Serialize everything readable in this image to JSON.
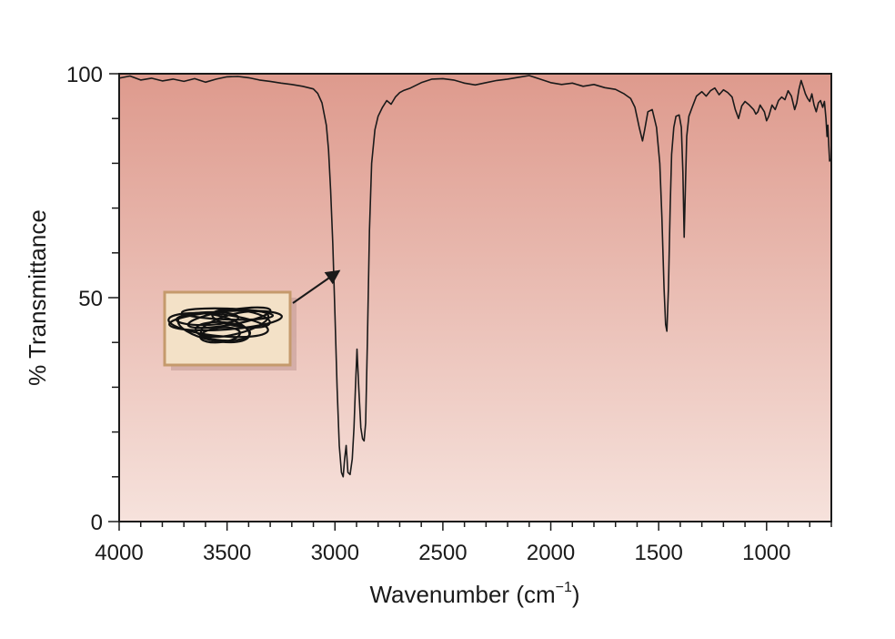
{
  "chart_data": {
    "type": "line",
    "title": "",
    "xlabel": "Wavenumber (cm",
    "xlabel_sup": "−1",
    "xlabel_close": ")",
    "ylabel": "% Transmittance",
    "xlim": [
      4000,
      700
    ],
    "ylim": [
      0,
      100
    ],
    "x_tick_labels": [
      "4000",
      "3500",
      "3000",
      "2500",
      "2000",
      "1500",
      "1000"
    ],
    "x_tick_values": [
      4000,
      3500,
      3000,
      2500,
      2000,
      1500,
      1000
    ],
    "y_tick_labels": [
      "0",
      "50",
      "100"
    ],
    "y_tick_values": [
      0,
      50,
      100
    ],
    "grid": false,
    "background_gradient": [
      "#de9a8d",
      "#f6e2dc"
    ],
    "line_color": "#1a1a1a",
    "series": [
      {
        "values": [
          [
            4000,
            99.0
          ],
          [
            3950,
            99.5
          ],
          [
            3900,
            98.6
          ],
          [
            3850,
            99.0
          ],
          [
            3800,
            98.4
          ],
          [
            3750,
            98.8
          ],
          [
            3700,
            98.3
          ],
          [
            3650,
            98.9
          ],
          [
            3600,
            98.1
          ],
          [
            3550,
            98.8
          ],
          [
            3500,
            99.3
          ],
          [
            3450,
            99.4
          ],
          [
            3400,
            99.1
          ],
          [
            3350,
            98.6
          ],
          [
            3300,
            98.3
          ],
          [
            3250,
            97.9
          ],
          [
            3200,
            97.6
          ],
          [
            3150,
            97.2
          ],
          [
            3100,
            96.6
          ],
          [
            3080,
            95.6
          ],
          [
            3060,
            93.5
          ],
          [
            3040,
            88.5
          ],
          [
            3030,
            83.0
          ],
          [
            3020,
            74.0
          ],
          [
            3010,
            62.0
          ],
          [
            3000,
            46.0
          ],
          [
            2990,
            30.0
          ],
          [
            2980,
            17.0
          ],
          [
            2970,
            11.0
          ],
          [
            2962,
            10.0
          ],
          [
            2955,
            14.0
          ],
          [
            2948,
            17.0
          ],
          [
            2940,
            11.0
          ],
          [
            2930,
            10.5
          ],
          [
            2920,
            14.0
          ],
          [
            2912,
            21.0
          ],
          [
            2905,
            30.0
          ],
          [
            2898,
            38.5
          ],
          [
            2890,
            30.0
          ],
          [
            2880,
            21.0
          ],
          [
            2872,
            18.5
          ],
          [
            2865,
            18.0
          ],
          [
            2858,
            22.0
          ],
          [
            2850,
            40.0
          ],
          [
            2840,
            65.0
          ],
          [
            2830,
            80.0
          ],
          [
            2815,
            87.5
          ],
          [
            2800,
            90.5
          ],
          [
            2780,
            92.5
          ],
          [
            2760,
            94.0
          ],
          [
            2740,
            93.2
          ],
          [
            2720,
            94.8
          ],
          [
            2700,
            95.8
          ],
          [
            2680,
            96.3
          ],
          [
            2650,
            96.8
          ],
          [
            2600,
            98.0
          ],
          [
            2550,
            98.8
          ],
          [
            2500,
            98.9
          ],
          [
            2450,
            98.6
          ],
          [
            2400,
            97.9
          ],
          [
            2350,
            97.5
          ],
          [
            2300,
            98.0
          ],
          [
            2250,
            98.5
          ],
          [
            2200,
            98.8
          ],
          [
            2150,
            99.2
          ],
          [
            2100,
            99.6
          ],
          [
            2050,
            98.8
          ],
          [
            2000,
            98.0
          ],
          [
            1950,
            97.6
          ],
          [
            1900,
            97.9
          ],
          [
            1850,
            97.2
          ],
          [
            1800,
            97.6
          ],
          [
            1750,
            96.9
          ],
          [
            1700,
            96.5
          ],
          [
            1660,
            95.5
          ],
          [
            1630,
            94.5
          ],
          [
            1610,
            92.5
          ],
          [
            1590,
            88.0
          ],
          [
            1575,
            85.0
          ],
          [
            1565,
            87.5
          ],
          [
            1550,
            91.5
          ],
          [
            1530,
            92.0
          ],
          [
            1510,
            88.0
          ],
          [
            1495,
            80.0
          ],
          [
            1485,
            68.0
          ],
          [
            1475,
            52.0
          ],
          [
            1468,
            44.0
          ],
          [
            1462,
            42.5
          ],
          [
            1455,
            52.0
          ],
          [
            1447,
            70.0
          ],
          [
            1440,
            82.0
          ],
          [
            1430,
            88.0
          ],
          [
            1420,
            90.5
          ],
          [
            1405,
            90.8
          ],
          [
            1395,
            88.0
          ],
          [
            1388,
            78.0
          ],
          [
            1382,
            63.5
          ],
          [
            1376,
            75.0
          ],
          [
            1370,
            86.0
          ],
          [
            1360,
            90.5
          ],
          [
            1345,
            92.5
          ],
          [
            1325,
            95.0
          ],
          [
            1300,
            96.0
          ],
          [
            1280,
            95.0
          ],
          [
            1260,
            96.2
          ],
          [
            1240,
            96.8
          ],
          [
            1220,
            95.3
          ],
          [
            1200,
            96.4
          ],
          [
            1180,
            95.8
          ],
          [
            1160,
            94.8
          ],
          [
            1145,
            92.0
          ],
          [
            1130,
            90.0
          ],
          [
            1115,
            92.8
          ],
          [
            1100,
            93.8
          ],
          [
            1080,
            93.0
          ],
          [
            1060,
            92.0
          ],
          [
            1050,
            91.0
          ],
          [
            1040,
            91.5
          ],
          [
            1030,
            93.0
          ],
          [
            1010,
            91.5
          ],
          [
            1000,
            89.5
          ],
          [
            990,
            90.5
          ],
          [
            975,
            93.0
          ],
          [
            960,
            92.0
          ],
          [
            945,
            94.0
          ],
          [
            930,
            94.8
          ],
          [
            915,
            94.2
          ],
          [
            900,
            96.2
          ],
          [
            885,
            95.0
          ],
          [
            870,
            92.0
          ],
          [
            860,
            93.5
          ],
          [
            850,
            96.5
          ],
          [
            840,
            98.5
          ],
          [
            830,
            97.0
          ],
          [
            820,
            95.5
          ],
          [
            810,
            94.5
          ],
          [
            800,
            93.8
          ],
          [
            790,
            95.5
          ],
          [
            780,
            93.0
          ],
          [
            770,
            91.5
          ],
          [
            760,
            93.5
          ],
          [
            750,
            94.0
          ],
          [
            740,
            92.5
          ],
          [
            732,
            93.8
          ],
          [
            725,
            90.0
          ],
          [
            720,
            86.0
          ],
          [
            716,
            88.5
          ],
          [
            712,
            84.0
          ],
          [
            708,
            80.5
          ],
          [
            705,
            81.0
          ]
        ]
      }
    ],
    "annotation": {
      "type": "callout-box-with-arrow",
      "text": "",
      "box_fill": "#f3e1c7",
      "box_border": "#c59a6c",
      "arrow_target": [
        2980,
        56
      ]
    }
  }
}
